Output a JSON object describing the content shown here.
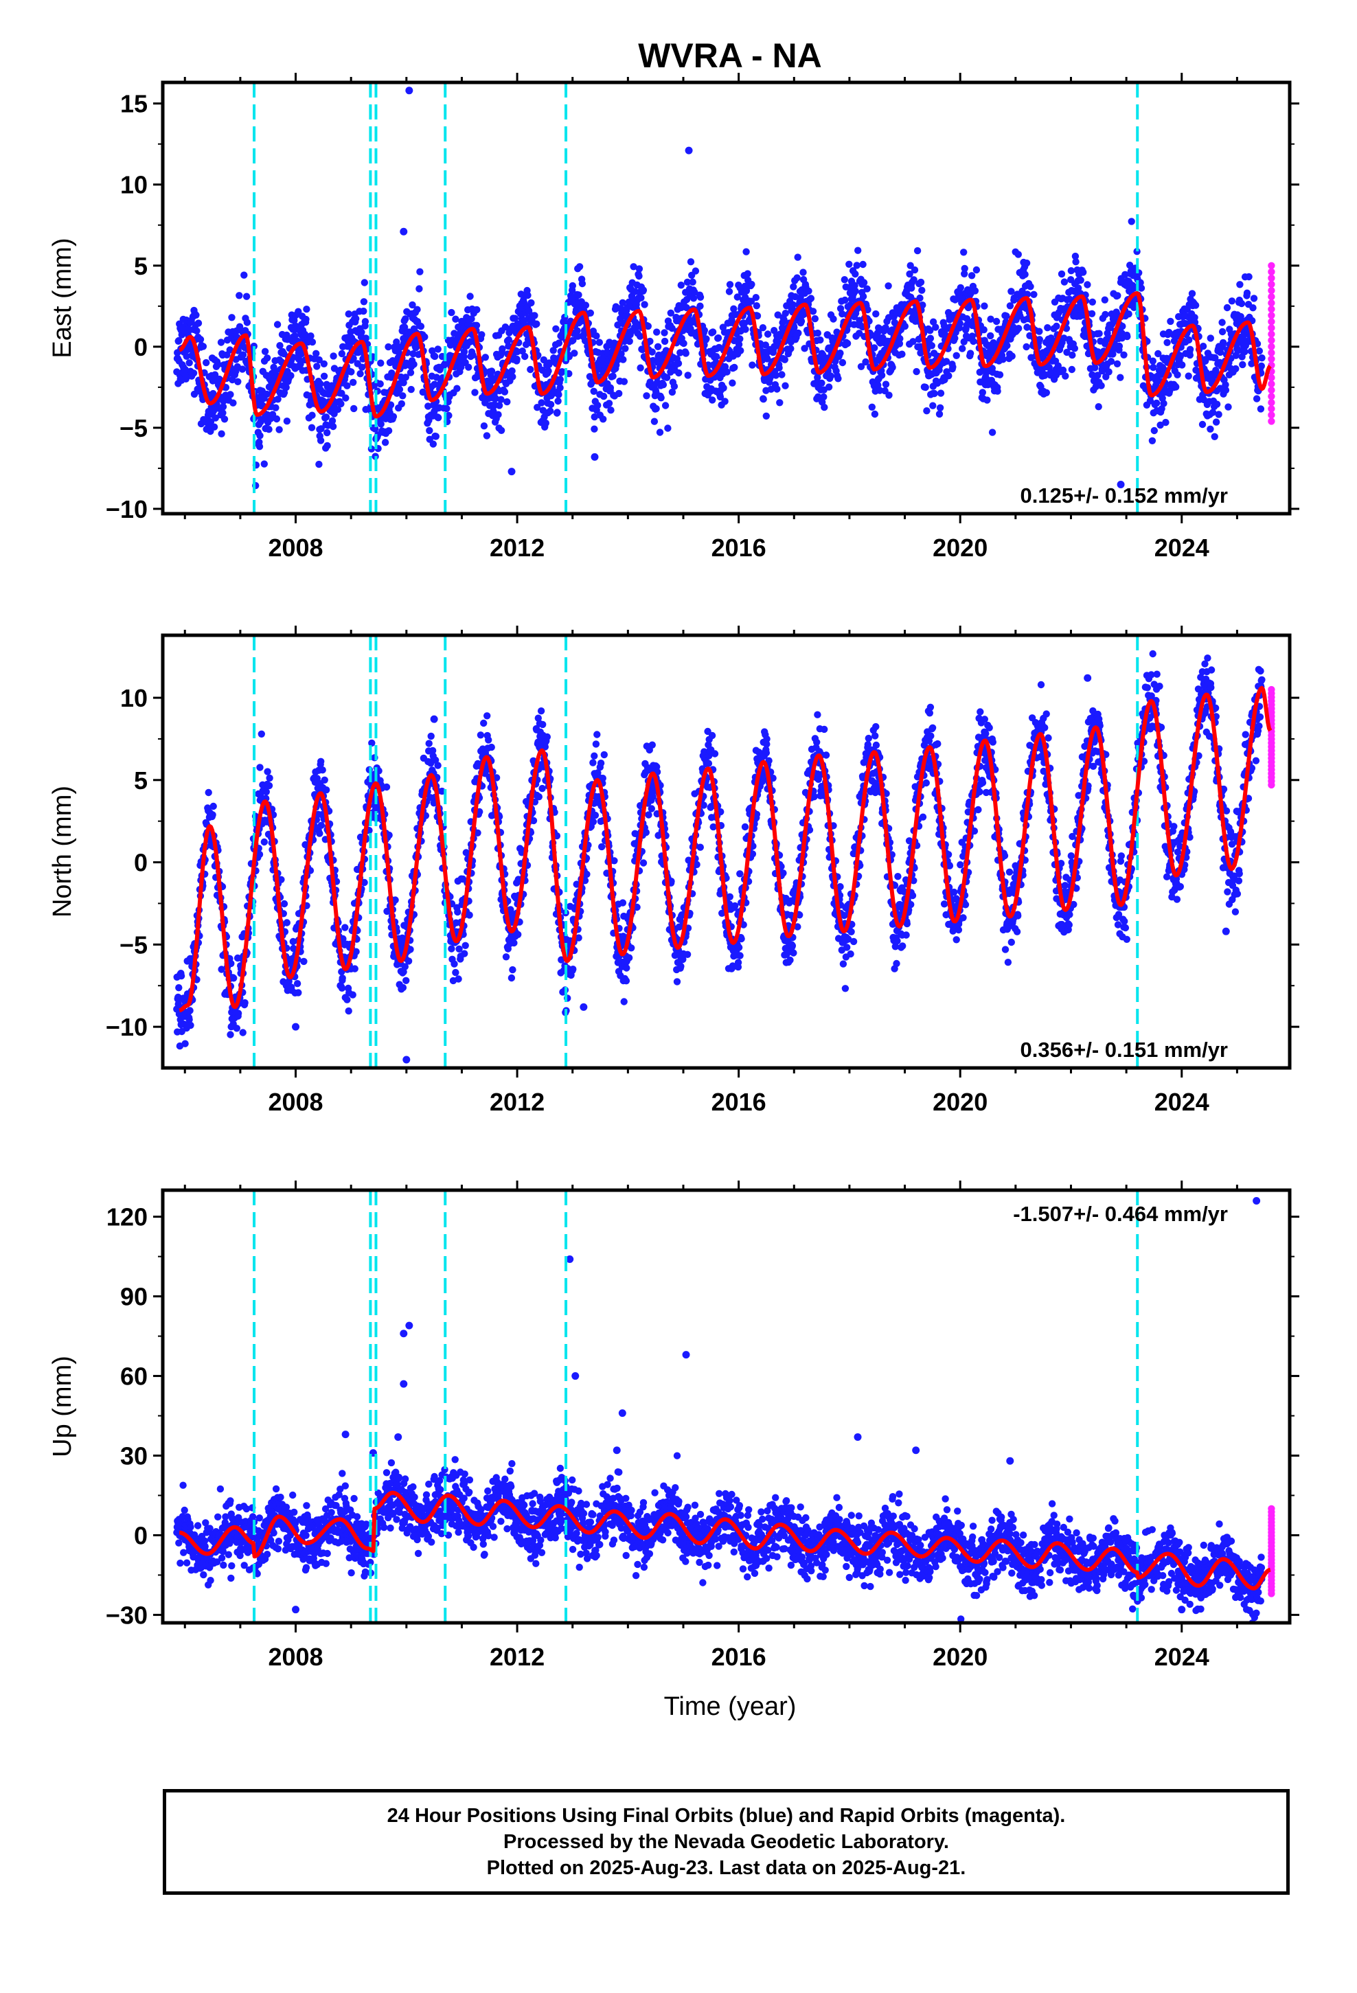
{
  "figure": {
    "title": "WVRA - NA",
    "xlabel": "Time (year)",
    "caption": [
      "24 Hour Positions Using Final Orbits (blue) and Rapid Orbits (magenta).",
      "Processed by the Nevada Geodetic Laboratory.",
      "Plotted on 2025-Aug-23. Last data on 2025-Aug-21."
    ]
  },
  "colors": {
    "final_orbits": "#1a1aff",
    "rapid_orbits": "#ff22ff",
    "model": "#ff0000",
    "events": "#00e5ee"
  },
  "chart_data": [
    {
      "type": "scatter",
      "component": "East",
      "ylabel": "East (mm)",
      "rate_text": "0.125+/- 0.152 mm/yr",
      "xlim": [
        2005.6,
        2025.95
      ],
      "ylim": [
        -10.3,
        16.3
      ],
      "yticks": [
        -10,
        -5,
        0,
        5,
        10,
        15
      ],
      "xticks": [
        2008,
        2012,
        2016,
        2020,
        2024
      ],
      "grid": false,
      "series": [
        {
          "name": "Final Orbits",
          "color": "final_orbits",
          "x_range": [
            2005.85,
            2025.45
          ],
          "noise_mm": 1.3,
          "outliers": [
            [
              2010.05,
              15.8
            ],
            [
              2015.1,
              12.1
            ],
            [
              2009.95,
              7.1
            ],
            [
              2013.4,
              -6.8
            ],
            [
              2011.9,
              -7.7
            ],
            [
              2022.9,
              -8.5
            ]
          ]
        },
        {
          "name": "Rapid Orbits",
          "color": "rapid_orbits",
          "x_range": [
            2025.45,
            2025.63
          ],
          "y_range": [
            -4.6,
            5.0
          ]
        },
        {
          "name": "Model",
          "color": "model",
          "type": "line",
          "description_points": [
            [
              2005.9,
              -0.2
            ],
            [
              2006.1,
              0.6
            ],
            [
              2006.45,
              -3.5
            ],
            [
              2007.1,
              0.7
            ],
            [
              2007.3,
              -4.2
            ],
            [
              2008.1,
              0.2
            ],
            [
              2008.45,
              -4.0
            ],
            [
              2009.2,
              0.3
            ],
            [
              2009.45,
              -4.3
            ],
            [
              2010.2,
              0.8
            ],
            [
              2010.45,
              -3.3
            ],
            [
              2011.2,
              1.1
            ],
            [
              2011.45,
              -2.9
            ],
            [
              2012.2,
              1.2
            ],
            [
              2012.45,
              -2.9
            ],
            [
              2013.2,
              2.1
            ],
            [
              2013.45,
              -2.2
            ],
            [
              2014.2,
              2.2
            ],
            [
              2014.45,
              -1.9
            ],
            [
              2015.2,
              2.3
            ],
            [
              2015.45,
              -1.8
            ],
            [
              2016.2,
              2.4
            ],
            [
              2016.45,
              -1.7
            ],
            [
              2017.2,
              2.6
            ],
            [
              2017.45,
              -1.6
            ],
            [
              2018.2,
              2.7
            ],
            [
              2018.45,
              -1.4
            ],
            [
              2019.2,
              2.8
            ],
            [
              2019.45,
              -1.3
            ],
            [
              2020.2,
              2.9
            ],
            [
              2020.45,
              -1.2
            ],
            [
              2021.2,
              3.0
            ],
            [
              2021.45,
              -1.1
            ],
            [
              2022.2,
              3.1
            ],
            [
              2022.45,
              -1.0
            ],
            [
              2023.2,
              3.3
            ],
            [
              2023.45,
              -3.0
            ],
            [
              2024.2,
              1.3
            ],
            [
              2024.45,
              -2.8
            ],
            [
              2025.2,
              1.5
            ],
            [
              2025.45,
              -2.6
            ],
            [
              2025.6,
              -1.2
            ]
          ]
        }
      ]
    },
    {
      "type": "scatter",
      "component": "North",
      "ylabel": "North (mm)",
      "rate_text": "0.356+/- 0.151 mm/yr",
      "xlim": [
        2005.6,
        2025.95
      ],
      "ylim": [
        -12.5,
        13.8
      ],
      "yticks": [
        -10,
        -5,
        0,
        5,
        10
      ],
      "xticks": [
        2008,
        2012,
        2016,
        2020,
        2024
      ],
      "grid": false,
      "series": [
        {
          "name": "Final Orbits",
          "color": "final_orbits",
          "x_range": [
            2005.85,
            2025.45
          ],
          "noise_mm": 1.2,
          "outliers": [
            [
              2010.5,
              8.7
            ],
            [
              2010.0,
              -12.0
            ],
            [
              2008.0,
              -10.0
            ],
            [
              2013.2,
              -8.8
            ],
            [
              2024.8,
              -4.2
            ],
            [
              2022.3,
              11.2
            ]
          ]
        },
        {
          "name": "Rapid Orbits",
          "color": "rapid_orbits",
          "x_range": [
            2025.45,
            2025.63
          ],
          "y_range": [
            4.7,
            10.5
          ]
        },
        {
          "name": "Model",
          "color": "model",
          "type": "line",
          "description_points": [
            [
              2005.9,
              -9.0
            ],
            [
              2006.05,
              -8.7
            ],
            [
              2006.45,
              2.2
            ],
            [
              2006.9,
              -8.8
            ],
            [
              2007.45,
              3.7
            ],
            [
              2007.9,
              -7.0
            ],
            [
              2008.45,
              4.2
            ],
            [
              2008.9,
              -6.5
            ],
            [
              2009.45,
              4.8
            ],
            [
              2009.9,
              -6.0
            ],
            [
              2010.45,
              5.3
            ],
            [
              2010.9,
              -4.8
            ],
            [
              2011.45,
              6.4
            ],
            [
              2011.9,
              -4.2
            ],
            [
              2012.45,
              6.8
            ],
            [
              2012.9,
              -6.0
            ],
            [
              2013.45,
              5.0
            ],
            [
              2013.9,
              -5.6
            ],
            [
              2014.45,
              5.4
            ],
            [
              2014.9,
              -5.2
            ],
            [
              2015.45,
              5.7
            ],
            [
              2015.9,
              -4.9
            ],
            [
              2016.45,
              6.1
            ],
            [
              2016.9,
              -4.5
            ],
            [
              2017.45,
              6.5
            ],
            [
              2017.9,
              -4.2
            ],
            [
              2018.45,
              6.7
            ],
            [
              2018.9,
              -3.9
            ],
            [
              2019.45,
              7.0
            ],
            [
              2019.9,
              -3.6
            ],
            [
              2020.45,
              7.4
            ],
            [
              2020.9,
              -3.3
            ],
            [
              2021.45,
              7.8
            ],
            [
              2021.9,
              -2.9
            ],
            [
              2022.45,
              8.2
            ],
            [
              2022.9,
              -2.6
            ],
            [
              2023.45,
              9.8
            ],
            [
              2023.9,
              -0.8
            ],
            [
              2024.45,
              10.2
            ],
            [
              2024.9,
              -0.4
            ],
            [
              2025.45,
              10.6
            ],
            [
              2025.6,
              8.0
            ]
          ]
        }
      ]
    },
    {
      "type": "scatter",
      "component": "Up",
      "ylabel": "Up (mm)",
      "rate_text": "-1.507+/- 0.464 mm/yr",
      "xlim": [
        2005.6,
        2025.95
      ],
      "ylim": [
        -33,
        130
      ],
      "yticks": [
        -30,
        0,
        30,
        60,
        90,
        120
      ],
      "xticks": [
        2008,
        2012,
        2016,
        2020,
        2024
      ],
      "grid": false,
      "series": [
        {
          "name": "Final Orbits",
          "color": "final_orbits",
          "x_range": [
            2005.85,
            2025.45
          ],
          "noise_mm": 5.5,
          "outliers": [
            [
              2025.35,
              126
            ],
            [
              2012.95,
              104
            ],
            [
              2009.95,
              76
            ],
            [
              2010.05,
              79
            ],
            [
              2009.95,
              57
            ],
            [
              2013.05,
              60
            ],
            [
              2015.05,
              68
            ],
            [
              2009.85,
              37
            ],
            [
              2013.9,
              46
            ],
            [
              2008.9,
              38
            ],
            [
              2013.8,
              32
            ],
            [
              2018.15,
              37
            ],
            [
              2019.2,
              32
            ],
            [
              2020.9,
              28
            ],
            [
              2009.4,
              31
            ],
            [
              2008.0,
              -28
            ],
            [
              2024.0,
              -28
            ]
          ]
        },
        {
          "name": "Rapid Orbits",
          "color": "rapid_orbits",
          "x_range": [
            2025.45,
            2025.63
          ],
          "y_range": [
            -22,
            10
          ]
        },
        {
          "name": "Model",
          "color": "model",
          "type": "line",
          "description_points": [
            [
              2005.9,
              1
            ],
            [
              2006.4,
              -7
            ],
            [
              2006.9,
              3
            ],
            [
              2007.25,
              -3
            ],
            [
              2007.25,
              -8
            ],
            [
              2007.7,
              7
            ],
            [
              2008.2,
              -3
            ],
            [
              2008.8,
              6
            ],
            [
              2009.3,
              -5
            ],
            [
              2009.42,
              -6
            ],
            [
              2009.42,
              10
            ],
            [
              2009.75,
              16
            ],
            [
              2010.3,
              5
            ],
            [
              2010.75,
              15
            ],
            [
              2011.3,
              4
            ],
            [
              2011.75,
              13
            ],
            [
              2012.3,
              3
            ],
            [
              2012.75,
              11
            ],
            [
              2013.3,
              1
            ],
            [
              2013.75,
              9
            ],
            [
              2014.3,
              -1
            ],
            [
              2014.75,
              8
            ],
            [
              2015.3,
              -3
            ],
            [
              2015.75,
              6
            ],
            [
              2016.3,
              -5
            ],
            [
              2016.75,
              4
            ],
            [
              2017.3,
              -6
            ],
            [
              2017.75,
              2
            ],
            [
              2018.3,
              -7
            ],
            [
              2018.75,
              1
            ],
            [
              2019.3,
              -8
            ],
            [
              2019.75,
              -1
            ],
            [
              2020.3,
              -10
            ],
            [
              2020.75,
              -2
            ],
            [
              2021.3,
              -12
            ],
            [
              2021.75,
              -3
            ],
            [
              2022.3,
              -13
            ],
            [
              2022.75,
              -5
            ],
            [
              2023.2,
              -14
            ],
            [
              2023.2,
              -16
            ],
            [
              2023.75,
              -7
            ],
            [
              2024.3,
              -19
            ],
            [
              2024.75,
              -9
            ],
            [
              2025.3,
              -20
            ],
            [
              2025.6,
              -13
            ]
          ]
        }
      ]
    }
  ],
  "event_lines": [
    2007.25,
    2009.35,
    2009.45,
    2010.7,
    2012.88,
    2023.2
  ]
}
